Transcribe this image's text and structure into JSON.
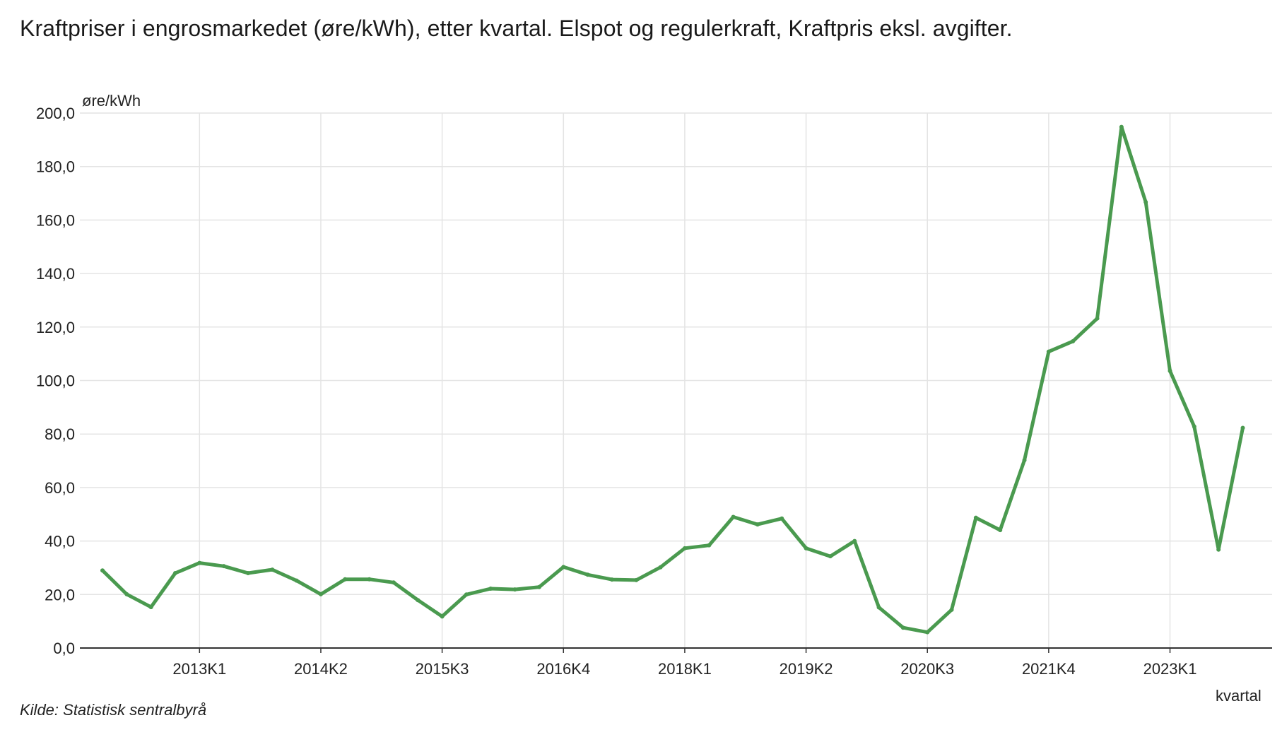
{
  "title": "Kraftpriser i engrosmarkedet (øre/kWh), etter kvartal. Elspot og regulerkraft, Kraftpris eksl. avgifter.",
  "source": "Kilde:  Statistisk sentralbyrå",
  "chart_data": {
    "type": "line",
    "ylabel": "øre/kWh",
    "xlabel": "kvartal",
    "ylim": [
      0,
      200
    ],
    "yticks": [
      "0,0",
      "20,0",
      "40,0",
      "60,0",
      "80,0",
      "100,0",
      "120,0",
      "140,0",
      "160,0",
      "180,0",
      "200,0"
    ],
    "xticks": [
      "2013K1",
      "2014K2",
      "2015K3",
      "2016K4",
      "2018K1",
      "2019K2",
      "2020K3",
      "2021K4",
      "2023K1"
    ],
    "grid": true,
    "line_color": "#4a9a4f",
    "categories": [
      "2012K1",
      "2012K2",
      "2012K3",
      "2012K4",
      "2013K1",
      "2013K2",
      "2013K3",
      "2013K4",
      "2014K1",
      "2014K2",
      "2014K3",
      "2014K4",
      "2015K1",
      "2015K2",
      "2015K3",
      "2015K4",
      "2016K1",
      "2016K2",
      "2016K3",
      "2016K4",
      "2017K1",
      "2017K2",
      "2017K3",
      "2017K4",
      "2018K1",
      "2018K2",
      "2018K3",
      "2018K4",
      "2019K1",
      "2019K2",
      "2019K3",
      "2019K4",
      "2020K1",
      "2020K2",
      "2020K3",
      "2020K4",
      "2021K1",
      "2021K2",
      "2021K3",
      "2021K4",
      "2022K1",
      "2022K2",
      "2022K3",
      "2022K4",
      "2023K1",
      "2023K2",
      "2023K3",
      "2023K4"
    ],
    "values": [
      29.0,
      20.1,
      15.3,
      28.0,
      31.8,
      30.6,
      28.0,
      29.3,
      25.2,
      20.1,
      25.7,
      25.7,
      24.5,
      17.9,
      11.8,
      20.0,
      22.2,
      21.9,
      22.8,
      30.3,
      27.4,
      25.6,
      25.4,
      30.2,
      37.3,
      38.4,
      49.0,
      46.2,
      48.4,
      37.3,
      34.3,
      40.0,
      15.2,
      7.6,
      5.9,
      14.3,
      48.7,
      44.1,
      70.2,
      110.8,
      114.7,
      123.2,
      194.8,
      166.7,
      103.6,
      82.8,
      36.8,
      82.3
    ]
  }
}
